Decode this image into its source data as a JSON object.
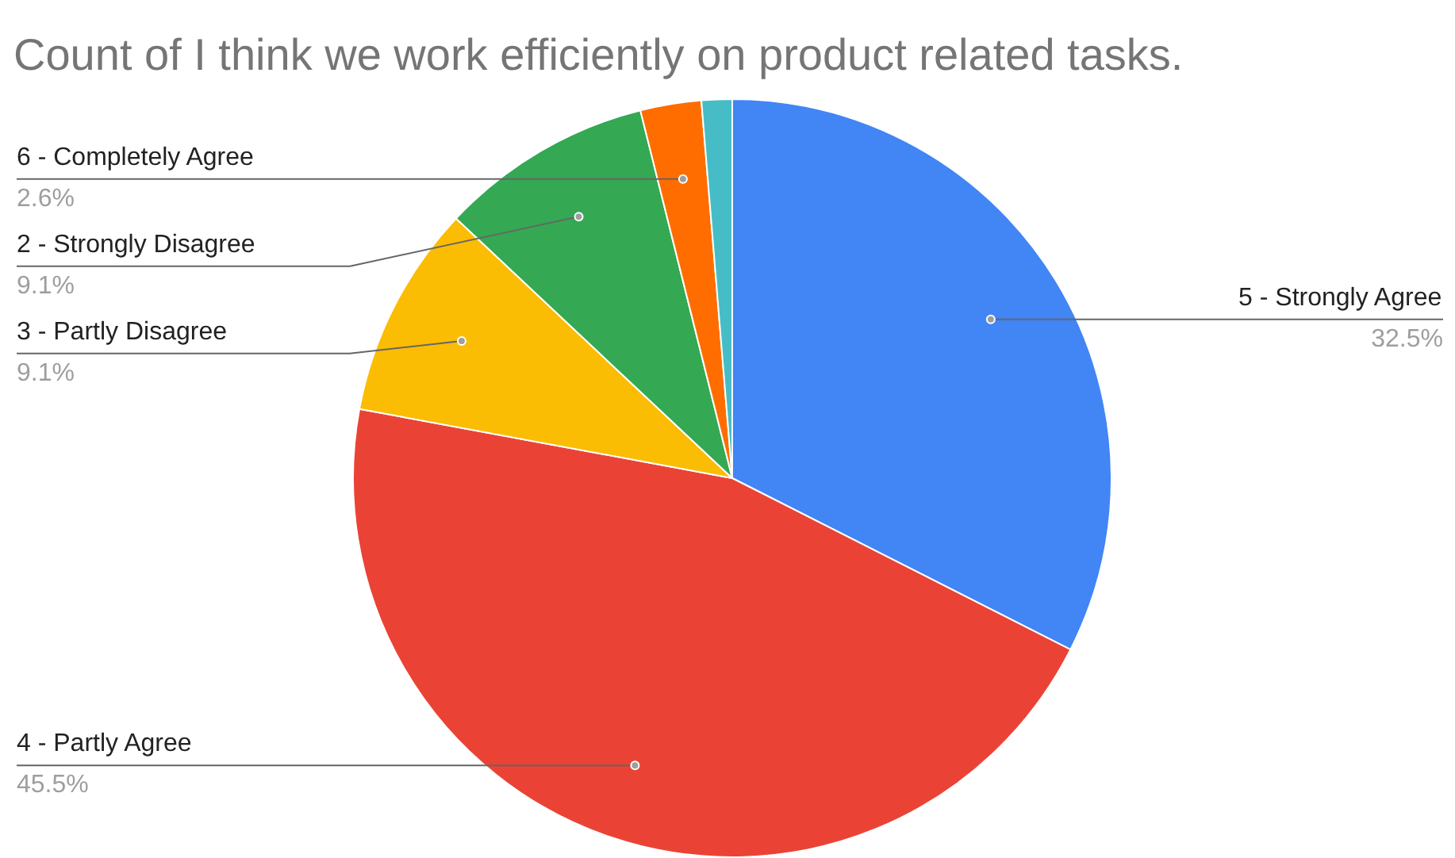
{
  "chart_data": {
    "type": "pie",
    "title": "Count of I think we work efficiently on product related tasks.",
    "categories": [
      "5 - Strongly Agree",
      "4 - Partly Agree",
      "3 - Partly Disagree",
      "2 - Strongly Disagree",
      "6 - Completely Agree",
      null
    ],
    "values": [
      32.5,
      45.5,
      9.1,
      9.1,
      2.6,
      1.3
    ],
    "colors": [
      "#4285f4",
      "#ea4335",
      "#fbbc04",
      "#34a853",
      "#ff6d01",
      "#46bdc6"
    ],
    "value_labels": [
      "32.5%",
      "45.5%",
      "9.1%",
      "9.1%",
      "2.6%",
      null
    ]
  }
}
